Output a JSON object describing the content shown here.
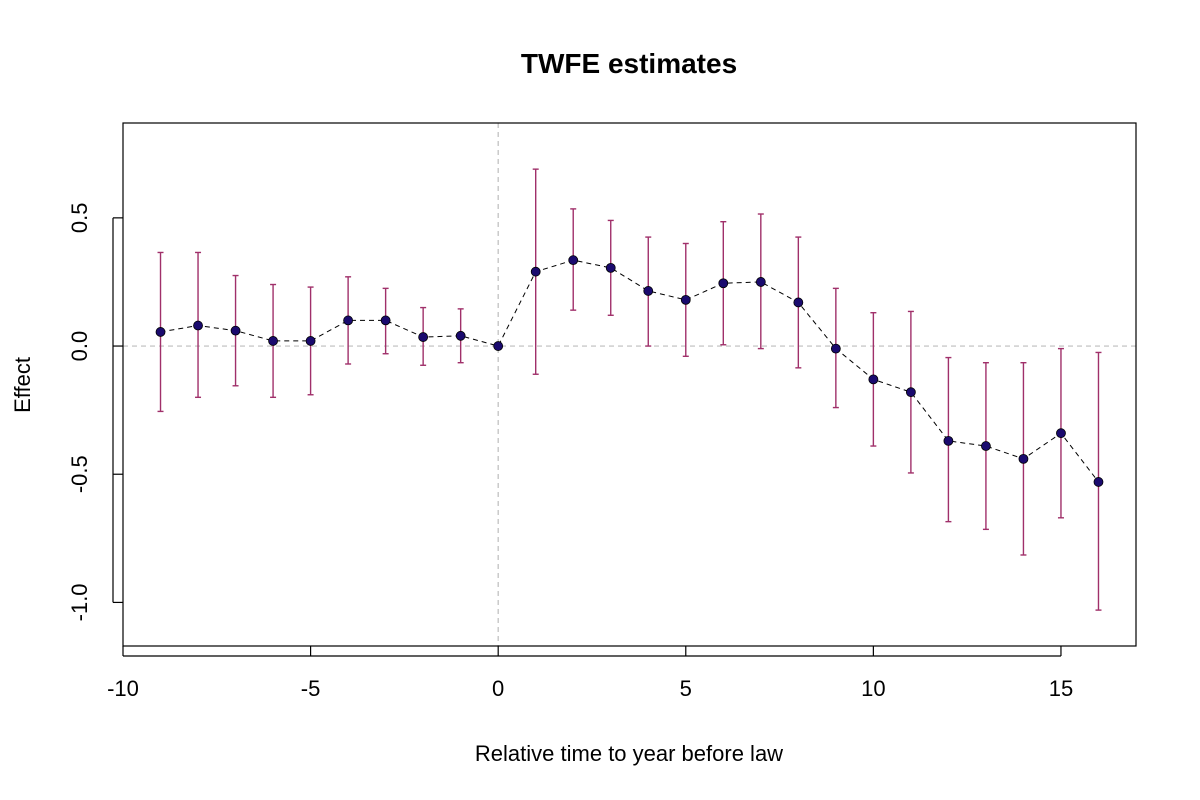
{
  "chart_data": {
    "type": "scatter",
    "title": "TWFE estimates",
    "xlabel": "Relative time to year before law",
    "ylabel": "Effect",
    "xlim": [
      -10,
      17
    ],
    "ylim": [
      -1.17,
      0.87
    ],
    "x_ticks": [
      -10,
      -5,
      0,
      5,
      10,
      15
    ],
    "x_tick_labels": [
      "-10",
      "-5",
      "0",
      "5",
      "10",
      "15"
    ],
    "y_ticks": [
      -1.0,
      -0.5,
      0.0,
      0.5
    ],
    "y_tick_labels": [
      "-1.0",
      "-0.5",
      "0.0",
      "0.5"
    ],
    "reference_lines": {
      "h": 0,
      "v": 0,
      "style": "dashed"
    },
    "series": [
      {
        "name": "TWFE estimate",
        "x": [
          -9,
          -8,
          -7,
          -6,
          -5,
          -4,
          -3,
          -2,
          -1,
          0,
          1,
          2,
          3,
          4,
          5,
          6,
          7,
          8,
          9,
          10,
          11,
          12,
          13,
          14,
          15,
          16
        ],
        "y": [
          0.055,
          0.08,
          0.06,
          0.02,
          0.02,
          0.1,
          0.1,
          0.035,
          0.04,
          0.0,
          0.29,
          0.335,
          0.305,
          0.215,
          0.18,
          0.245,
          0.25,
          0.17,
          -0.01,
          -0.13,
          -0.18,
          -0.37,
          -0.39,
          -0.44,
          -0.34,
          -0.53
        ],
        "lower": [
          -0.255,
          -0.2,
          -0.155,
          -0.2,
          -0.19,
          -0.07,
          -0.03,
          -0.075,
          -0.065,
          0.0,
          -0.11,
          0.14,
          0.12,
          0.0,
          -0.04,
          0.005,
          -0.01,
          -0.085,
          -0.24,
          -0.39,
          -0.495,
          -0.685,
          -0.715,
          -0.815,
          -0.67,
          -1.03
        ],
        "upper": [
          0.365,
          0.365,
          0.275,
          0.24,
          0.23,
          0.27,
          0.225,
          0.15,
          0.145,
          0.0,
          0.69,
          0.535,
          0.49,
          0.425,
          0.4,
          0.485,
          0.515,
          0.425,
          0.225,
          0.13,
          0.135,
          -0.045,
          -0.065,
          -0.065,
          -0.01,
          -0.025
        ]
      }
    ],
    "colors": {
      "point": "#1a0a6e",
      "line": "#000000",
      "error_bar": "#a0306a",
      "reference": "#bdbdbd",
      "frame": "#000000"
    }
  }
}
